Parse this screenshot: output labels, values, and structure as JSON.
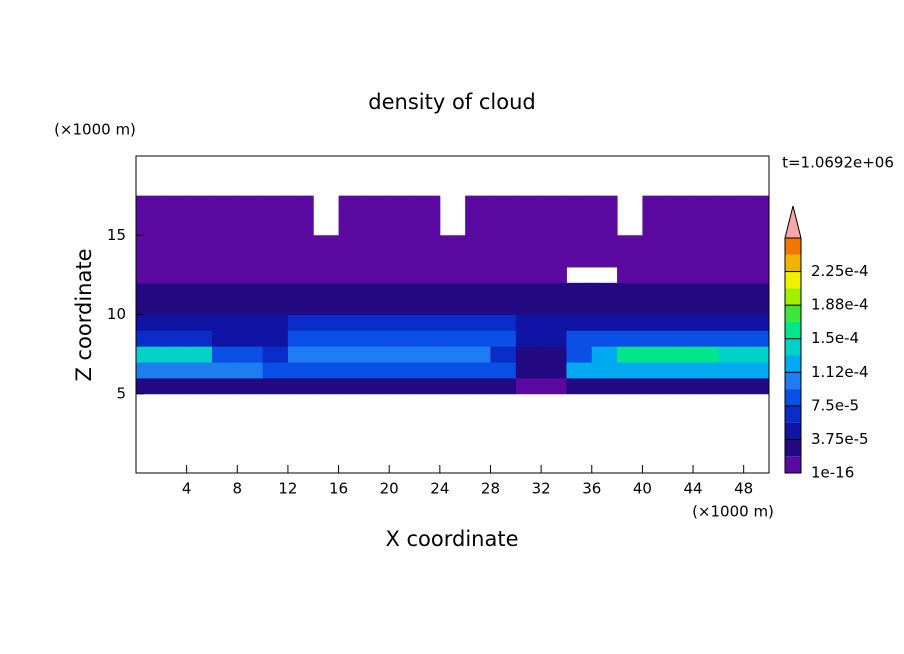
{
  "chart_data": {
    "type": "contour",
    "title": "density of cloud",
    "time_label": "t=1.0692e+06",
    "x_label": "X coordinate",
    "y_label": "Z coordinate",
    "x_unit": "(×1000 m)",
    "y_unit": "(×1000 m)",
    "xlim": [
      0,
      50
    ],
    "ylim": [
      0,
      20
    ],
    "xticks": [
      4,
      8,
      12,
      16,
      20,
      24,
      28,
      32,
      36,
      40,
      44,
      48
    ],
    "yticks": [
      5,
      10,
      15
    ],
    "field": {
      "x_edges": [
        0,
        2,
        4,
        6,
        8,
        10,
        12,
        14,
        16,
        18,
        20,
        22,
        24,
        26,
        28,
        30,
        32,
        34,
        36,
        38,
        40,
        42,
        44,
        46,
        48,
        50
      ],
      "z_edges": [
        5,
        6,
        7,
        8,
        9,
        10,
        11,
        12,
        13,
        15,
        17.5
      ],
      "values": [
        [
          3e-05,
          3e-05,
          3e-05,
          3e-05,
          3e-05,
          3e-05,
          3e-05,
          3e-05,
          3e-05,
          3e-05,
          3e-05,
          3e-05,
          3e-05,
          3e-05,
          3e-05,
          1e-05,
          1e-05,
          3e-05,
          3e-05,
          3e-05,
          3e-05,
          3e-05,
          3e-05,
          3e-05,
          3e-05
        ],
        [
          0.00011,
          0.00011,
          0.00011,
          0.00011,
          0.00011,
          8e-05,
          9e-05,
          9e-05,
          9e-05,
          9e-05,
          9e-05,
          9e-05,
          9e-05,
          9e-05,
          9e-05,
          3e-05,
          3e-05,
          0.00012,
          0.00012,
          0.00012,
          0.00012,
          0.00012,
          0.00012,
          0.00012,
          0.00012
        ],
        [
          0.000145,
          0.000145,
          0.000145,
          9e-05,
          9e-05,
          6e-05,
          0.000105,
          0.000105,
          0.000105,
          0.000105,
          0.000105,
          0.000105,
          0.000105,
          0.000105,
          6e-05,
          2e-05,
          2e-05,
          9e-05,
          0.00013,
          0.00016,
          0.00016,
          0.00016,
          0.00016,
          0.00014,
          0.00014
        ],
        [
          7e-05,
          7e-05,
          7e-05,
          4e-05,
          4e-05,
          5e-05,
          8e-05,
          8e-05,
          8e-05,
          8e-05,
          8e-05,
          8e-05,
          8e-05,
          8e-05,
          8e-05,
          4e-05,
          4e-05,
          8e-05,
          8e-05,
          8e-05,
          8e-05,
          8e-05,
          8e-05,
          8e-05,
          8e-05
        ],
        [
          5e-05,
          5e-05,
          5e-05,
          5e-05,
          5e-05,
          5e-05,
          6e-05,
          6e-05,
          6e-05,
          6e-05,
          6e-05,
          6e-05,
          6e-05,
          6e-05,
          6e-05,
          4e-05,
          4e-05,
          5e-05,
          5e-05,
          5e-05,
          5e-05,
          5e-05,
          5e-05,
          5e-05,
          5e-05
        ],
        [
          3.5e-05,
          3.5e-05,
          3.5e-05,
          3.5e-05,
          3.5e-05,
          3.5e-05,
          3.5e-05,
          3.5e-05,
          3.5e-05,
          3.5e-05,
          3.5e-05,
          3.5e-05,
          3.5e-05,
          3.5e-05,
          3.5e-05,
          2e-05,
          2e-05,
          3.5e-05,
          3.5e-05,
          3.5e-05,
          3.5e-05,
          3.5e-05,
          3.5e-05,
          3.5e-05,
          3.5e-05
        ],
        [
          2.5e-05,
          2.5e-05,
          2.5e-05,
          2.5e-05,
          2.5e-05,
          2.5e-05,
          2.5e-05,
          2.5e-05,
          2.5e-05,
          2.5e-05,
          2.5e-05,
          2.5e-05,
          2.5e-05,
          2.5e-05,
          2.5e-05,
          2.5e-05,
          2.5e-05,
          2.5e-05,
          2.5e-05,
          2.5e-05,
          2.5e-05,
          2.5e-05,
          2.5e-05,
          2.5e-05,
          2.5e-05
        ],
        [
          1.5e-05,
          1.5e-05,
          1.5e-05,
          1.5e-05,
          1.5e-05,
          1.5e-05,
          1.5e-05,
          1.5e-05,
          1.5e-05,
          1.5e-05,
          1.5e-05,
          1.5e-05,
          1.5e-05,
          1.5e-05,
          1.5e-05,
          1.5e-05,
          1.5e-05,
          null,
          null,
          1.5e-05,
          1.5e-05,
          1.5e-05,
          1.5e-05,
          1.5e-05,
          1.5e-05
        ],
        [
          5e-06,
          5e-06,
          5e-06,
          5e-06,
          5e-06,
          5e-06,
          5e-06,
          5e-06,
          5e-06,
          5e-06,
          5e-06,
          5e-06,
          5e-06,
          5e-06,
          5e-06,
          5e-06,
          5e-06,
          5e-06,
          5e-06,
          5e-06,
          5e-06,
          5e-06,
          5e-06,
          5e-06,
          5e-06
        ],
        [
          5e-06,
          5e-06,
          5e-06,
          5e-06,
          5e-06,
          5e-06,
          5e-06,
          null,
          5e-06,
          5e-06,
          5e-06,
          5e-06,
          null,
          5e-06,
          5e-06,
          5e-06,
          5e-06,
          5e-06,
          5e-06,
          null,
          5e-06,
          5e-06,
          5e-06,
          5e-06,
          5e-06
        ]
      ]
    },
    "colorbar": {
      "levels": [
        {
          "value": 1e-16,
          "label": "1e-16"
        },
        1.875e-05,
        {
          "value": 3.75e-05,
          "label": "3.75e-5"
        },
        5.625e-05,
        {
          "value": 7.5e-05,
          "label": "7.5e-5"
        },
        9.375e-05,
        {
          "value": 0.0001125,
          "label": "1.12e-4"
        },
        0.00013125,
        {
          "value": 0.00015,
          "label": "1.5e-4"
        },
        0.00016875,
        {
          "value": 0.0001875,
          "label": "1.88e-4"
        },
        0.00020625,
        {
          "value": 0.000225,
          "label": "2.25e-4"
        },
        0.00024375,
        0.0002625
      ],
      "colors": [
        "#5a0aa0",
        "#230a82",
        "#0f14a5",
        "#0a2dc8",
        "#0a50e6",
        "#1e7df0",
        "#00aaf0",
        "#00d2c8",
        "#00e68c",
        "#3ce63c",
        "#a0f000",
        "#f0f000",
        "#f0b400",
        "#f07800"
      ],
      "over_color": "#f4a8a8"
    }
  }
}
